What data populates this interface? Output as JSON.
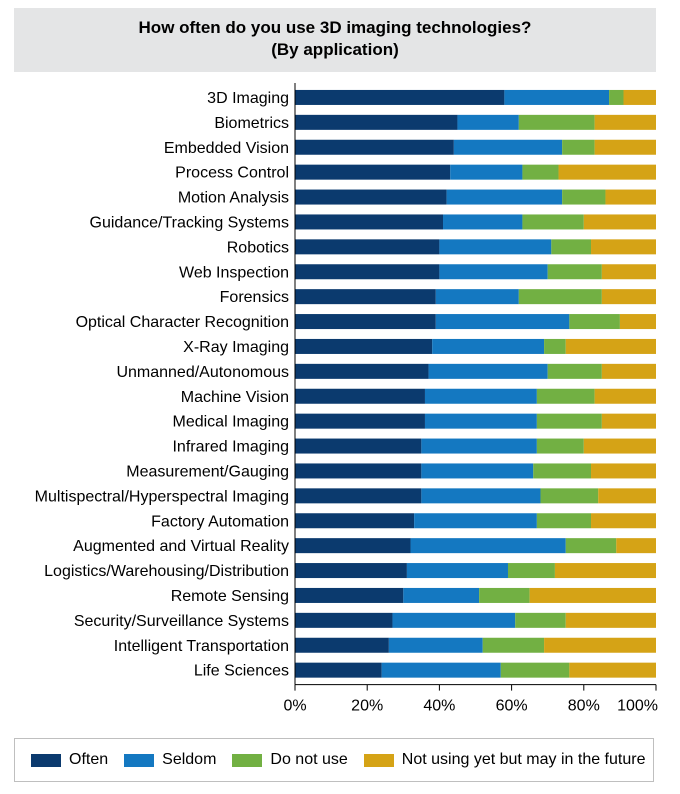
{
  "chart_data": {
    "type": "bar",
    "orientation": "horizontal",
    "stacked": true,
    "title": "How often do you use 3D imaging technologies?",
    "subtitle": "(By application)",
    "categories": [
      "3D Imaging",
      "Biometrics",
      "Embedded Vision",
      "Process Control",
      "Motion Analysis",
      "Guidance/Tracking Systems",
      "Robotics",
      "Web Inspection",
      "Forensics",
      "Optical Character Recognition",
      "X-Ray Imaging",
      "Unmanned/Autonomous",
      "Machine Vision",
      "Medical Imaging",
      "Infrared Imaging",
      "Measurement/Gauging",
      "Multispectral/Hyperspectral Imaging",
      "Factory Automation",
      "Augmented and Virtual Reality",
      "Logistics/Warehousing/Distribution",
      "Remote Sensing",
      "Security/Surveillance Systems",
      "Intelligent Transportation",
      "Life Sciences"
    ],
    "series": [
      {
        "name": "Often",
        "color": "#0b3a6e",
        "values": [
          58,
          45,
          44,
          43,
          42,
          41,
          40,
          40,
          39,
          39,
          38,
          37,
          36,
          36,
          35,
          35,
          35,
          33,
          32,
          31,
          30,
          27,
          26,
          24
        ]
      },
      {
        "name": "Seldom",
        "color": "#1478c1",
        "values": [
          29,
          17,
          30,
          20,
          32,
          22,
          31,
          30,
          23,
          37,
          31,
          33,
          31,
          31,
          32,
          31,
          33,
          34,
          43,
          28,
          21,
          34,
          26,
          33
        ]
      },
      {
        "name": "Do not use",
        "color": "#72b043",
        "values": [
          4,
          21,
          9,
          10,
          12,
          17,
          11,
          15,
          23,
          14,
          6,
          15,
          16,
          18,
          13,
          16,
          16,
          15,
          14,
          13,
          14,
          14,
          17,
          19
        ]
      },
      {
        "name": "Not using yet but may in the future",
        "color": "#d5a316",
        "values": [
          9,
          17,
          17,
          27,
          14,
          20,
          18,
          15,
          15,
          10,
          25,
          15,
          17,
          15,
          20,
          18,
          16,
          18,
          11,
          28,
          35,
          25,
          31,
          24
        ]
      }
    ],
    "xlim": [
      0,
      100
    ],
    "xticks": [
      "0%",
      "20%",
      "40%",
      "60%",
      "80%",
      "100%"
    ],
    "grid": false,
    "legend_position": "bottom"
  }
}
